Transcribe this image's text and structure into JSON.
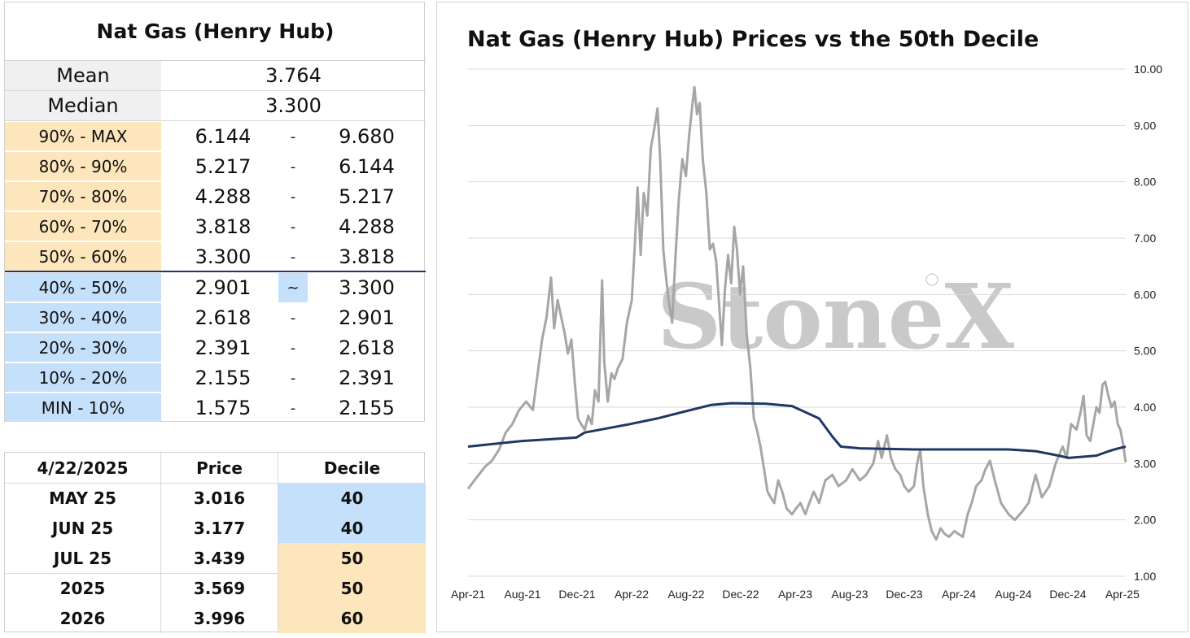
{
  "decile_table": {
    "title": "Nat Gas (Henry Hub)",
    "stats": [
      {
        "label": "Mean",
        "value": "3.764"
      },
      {
        "label": "Median",
        "value": "3.300"
      }
    ],
    "rows": [
      {
        "label": "90% - MAX",
        "low": "6.144",
        "sep": "-",
        "high": "9.680",
        "zone": "upper"
      },
      {
        "label": "80% - 90%",
        "low": "5.217",
        "sep": "-",
        "high": "6.144",
        "zone": "upper"
      },
      {
        "label": "70% - 80%",
        "low": "4.288",
        "sep": "-",
        "high": "5.217",
        "zone": "upper"
      },
      {
        "label": "60% - 70%",
        "low": "3.818",
        "sep": "-",
        "high": "4.288",
        "zone": "upper"
      },
      {
        "label": "50% - 60%",
        "low": "3.300",
        "sep": "-",
        "high": "3.818",
        "zone": "upper"
      },
      {
        "label": "40% - 50%",
        "low": "2.901",
        "sep": "~",
        "high": "3.300",
        "zone": "lower",
        "current": true
      },
      {
        "label": "30% - 40%",
        "low": "2.618",
        "sep": "-",
        "high": "2.901",
        "zone": "lower"
      },
      {
        "label": "20% - 30%",
        "low": "2.391",
        "sep": "-",
        "high": "2.618",
        "zone": "lower"
      },
      {
        "label": "10% - 20%",
        "low": "2.155",
        "sep": "-",
        "high": "2.391",
        "zone": "lower"
      },
      {
        "label": "MIN - 10%",
        "low": "1.575",
        "sep": "-",
        "high": "2.155",
        "zone": "lower"
      }
    ],
    "colors": {
      "upper": "#fde6bb",
      "lower": "#c5e0fa",
      "divider": "#1f3864"
    }
  },
  "forward_table": {
    "headers": [
      "4/22/2025",
      "Price",
      "Decile"
    ],
    "rows": [
      {
        "contract": "MAY 25",
        "price": "3.016",
        "decile": "40",
        "zone": "lower"
      },
      {
        "contract": "JUN 25",
        "price": "3.177",
        "decile": "40",
        "zone": "lower"
      },
      {
        "contract": "JUL 25",
        "price": "3.439",
        "decile": "50",
        "zone": "upper"
      },
      {
        "contract": "2025",
        "price": "3.569",
        "decile": "50",
        "zone": "upper"
      },
      {
        "contract": "2026",
        "price": "3.996",
        "decile": "60",
        "zone": "upper"
      }
    ]
  },
  "chart_data": {
    "type": "line",
    "title": "Nat Gas (Henry Hub) Prices vs the 50th Decile",
    "xlabel": "",
    "ylabel": "",
    "ylim": [
      1.0,
      10.0
    ],
    "yticks": [
      "1.00",
      "2.00",
      "3.00",
      "4.00",
      "5.00",
      "6.00",
      "7.00",
      "8.00",
      "9.00",
      "10.00"
    ],
    "xticks": [
      "Apr-21",
      "Aug-21",
      "Dec-21",
      "Apr-22",
      "Aug-22",
      "Dec-22",
      "Apr-23",
      "Aug-23",
      "Dec-23",
      "Apr-24",
      "Aug-24",
      "Dec-24",
      "Apr-25"
    ],
    "x_range": [
      "2021-04-01",
      "2025-04-22"
    ],
    "y_axis_position": "right",
    "grid": true,
    "legend": "none",
    "watermark": "StoneX",
    "series": [
      {
        "color": "#a6a6a6",
        "points": [
          [
            "2021-04-01",
            2.55
          ],
          [
            "2021-04-20",
            2.75
          ],
          [
            "2021-05-10",
            2.95
          ],
          [
            "2021-05-25",
            3.05
          ],
          [
            "2021-06-10",
            3.25
          ],
          [
            "2021-06-25",
            3.55
          ],
          [
            "2021-07-10",
            3.7
          ],
          [
            "2021-07-25",
            3.95
          ],
          [
            "2021-08-10",
            4.1
          ],
          [
            "2021-08-25",
            3.95
          ],
          [
            "2021-09-05",
            4.6
          ],
          [
            "2021-09-15",
            5.2
          ],
          [
            "2021-09-25",
            5.6
          ],
          [
            "2021-10-05",
            6.3
          ],
          [
            "2021-10-12",
            5.4
          ],
          [
            "2021-10-20",
            5.9
          ],
          [
            "2021-10-28",
            5.6
          ],
          [
            "2021-11-05",
            5.3
          ],
          [
            "2021-11-12",
            4.95
          ],
          [
            "2021-11-20",
            5.2
          ],
          [
            "2021-11-28",
            4.4
          ],
          [
            "2021-12-05",
            3.8
          ],
          [
            "2021-12-12",
            3.7
          ],
          [
            "2021-12-20",
            3.6
          ],
          [
            "2021-12-28",
            3.85
          ],
          [
            "2022-01-05",
            3.7
          ],
          [
            "2022-01-12",
            4.3
          ],
          [
            "2022-01-20",
            4.1
          ],
          [
            "2022-01-28",
            6.25
          ],
          [
            "2022-02-02",
            4.8
          ],
          [
            "2022-02-10",
            4.1
          ],
          [
            "2022-02-18",
            4.6
          ],
          [
            "2022-02-25",
            4.5
          ],
          [
            "2022-03-05",
            4.7
          ],
          [
            "2022-03-15",
            4.85
          ],
          [
            "2022-03-25",
            5.5
          ],
          [
            "2022-04-05",
            5.9
          ],
          [
            "2022-04-12",
            6.9
          ],
          [
            "2022-04-18",
            7.9
          ],
          [
            "2022-04-25",
            6.7
          ],
          [
            "2022-05-02",
            7.8
          ],
          [
            "2022-05-10",
            7.4
          ],
          [
            "2022-05-18",
            8.6
          ],
          [
            "2022-05-25",
            8.9
          ],
          [
            "2022-06-02",
            9.3
          ],
          [
            "2022-06-08",
            8.4
          ],
          [
            "2022-06-15",
            6.8
          ],
          [
            "2022-06-20",
            6.4
          ],
          [
            "2022-06-27",
            5.9
          ],
          [
            "2022-07-05",
            5.5
          ],
          [
            "2022-07-12",
            6.6
          ],
          [
            "2022-07-20",
            7.7
          ],
          [
            "2022-07-28",
            8.4
          ],
          [
            "2022-08-05",
            8.1
          ],
          [
            "2022-08-12",
            8.8
          ],
          [
            "2022-08-20",
            9.4
          ],
          [
            "2022-08-24",
            9.68
          ],
          [
            "2022-08-30",
            9.2
          ],
          [
            "2022-09-05",
            9.4
          ],
          [
            "2022-09-12",
            8.4
          ],
          [
            "2022-09-20",
            7.8
          ],
          [
            "2022-09-28",
            6.8
          ],
          [
            "2022-10-05",
            6.9
          ],
          [
            "2022-10-12",
            6.6
          ],
          [
            "2022-10-20",
            5.7
          ],
          [
            "2022-10-25",
            5.1
          ],
          [
            "2022-11-01",
            6.1
          ],
          [
            "2022-11-08",
            6.7
          ],
          [
            "2022-11-15",
            6.2
          ],
          [
            "2022-11-22",
            7.2
          ],
          [
            "2022-11-28",
            6.8
          ],
          [
            "2022-12-05",
            6.0
          ],
          [
            "2022-12-12",
            6.5
          ],
          [
            "2022-12-20",
            5.3
          ],
          [
            "2022-12-28",
            4.7
          ],
          [
            "2023-01-05",
            3.8
          ],
          [
            "2023-01-12",
            3.6
          ],
          [
            "2023-01-20",
            3.3
          ],
          [
            "2023-01-28",
            2.9
          ],
          [
            "2023-02-05",
            2.5
          ],
          [
            "2023-02-12",
            2.4
          ],
          [
            "2023-02-20",
            2.3
          ],
          [
            "2023-03-01",
            2.7
          ],
          [
            "2023-03-10",
            2.5
          ],
          [
            "2023-03-20",
            2.2
          ],
          [
            "2023-04-01",
            2.1
          ],
          [
            "2023-04-10",
            2.2
          ],
          [
            "2023-04-20",
            2.3
          ],
          [
            "2023-05-01",
            2.1
          ],
          [
            "2023-05-10",
            2.3
          ],
          [
            "2023-05-20",
            2.5
          ],
          [
            "2023-06-01",
            2.3
          ],
          [
            "2023-06-15",
            2.7
          ],
          [
            "2023-07-01",
            2.8
          ],
          [
            "2023-07-15",
            2.6
          ],
          [
            "2023-08-01",
            2.7
          ],
          [
            "2023-08-15",
            2.9
          ],
          [
            "2023-09-01",
            2.7
          ],
          [
            "2023-09-15",
            2.8
          ],
          [
            "2023-10-01",
            3.0
          ],
          [
            "2023-10-12",
            3.4
          ],
          [
            "2023-10-20",
            3.1
          ],
          [
            "2023-11-01",
            3.5
          ],
          [
            "2023-11-10",
            3.1
          ],
          [
            "2023-11-20",
            2.9
          ],
          [
            "2023-12-01",
            2.8
          ],
          [
            "2023-12-10",
            2.6
          ],
          [
            "2023-12-20",
            2.5
          ],
          [
            "2024-01-01",
            2.6
          ],
          [
            "2024-01-08",
            3.0
          ],
          [
            "2024-01-15",
            3.25
          ],
          [
            "2024-01-22",
            2.6
          ],
          [
            "2024-02-01",
            2.1
          ],
          [
            "2024-02-10",
            1.8
          ],
          [
            "2024-02-20",
            1.65
          ],
          [
            "2024-03-01",
            1.85
          ],
          [
            "2024-03-10",
            1.75
          ],
          [
            "2024-03-20",
            1.7
          ],
          [
            "2024-04-01",
            1.8
          ],
          [
            "2024-04-10",
            1.75
          ],
          [
            "2024-04-20",
            1.7
          ],
          [
            "2024-05-01",
            2.1
          ],
          [
            "2024-05-10",
            2.3
          ],
          [
            "2024-05-20",
            2.6
          ],
          [
            "2024-06-01",
            2.7
          ],
          [
            "2024-06-10",
            2.9
          ],
          [
            "2024-06-20",
            3.05
          ],
          [
            "2024-07-01",
            2.7
          ],
          [
            "2024-07-15",
            2.3
          ],
          [
            "2024-08-01",
            2.1
          ],
          [
            "2024-08-15",
            2.0
          ],
          [
            "2024-09-01",
            2.15
          ],
          [
            "2024-09-15",
            2.3
          ],
          [
            "2024-10-01",
            2.8
          ],
          [
            "2024-10-15",
            2.4
          ],
          [
            "2024-11-01",
            2.6
          ],
          [
            "2024-11-15",
            3.0
          ],
          [
            "2024-12-01",
            3.3
          ],
          [
            "2024-12-10",
            3.1
          ],
          [
            "2024-12-20",
            3.7
          ],
          [
            "2025-01-01",
            3.6
          ],
          [
            "2025-01-10",
            3.9
          ],
          [
            "2025-01-17",
            4.2
          ],
          [
            "2025-01-24",
            3.5
          ],
          [
            "2025-02-01",
            3.4
          ],
          [
            "2025-02-08",
            3.7
          ],
          [
            "2025-02-15",
            4.0
          ],
          [
            "2025-02-22",
            3.9
          ],
          [
            "2025-03-01",
            4.4
          ],
          [
            "2025-03-07",
            4.45
          ],
          [
            "2025-03-14",
            4.2
          ],
          [
            "2025-03-21",
            4.0
          ],
          [
            "2025-03-28",
            4.1
          ],
          [
            "2025-04-04",
            3.7
          ],
          [
            "2025-04-10",
            3.6
          ],
          [
            "2025-04-16",
            3.35
          ],
          [
            "2025-04-22",
            3.02
          ]
        ]
      },
      {
        "color": "#1f3864",
        "points": [
          [
            "2021-04-01",
            3.3
          ],
          [
            "2021-08-01",
            3.4
          ],
          [
            "2021-12-01",
            3.46
          ],
          [
            "2021-12-20",
            3.55
          ],
          [
            "2022-04-01",
            3.7
          ],
          [
            "2022-06-01",
            3.8
          ],
          [
            "2022-08-01",
            3.92
          ],
          [
            "2022-10-01",
            4.04
          ],
          [
            "2022-11-15",
            4.07
          ],
          [
            "2023-02-01",
            4.06
          ],
          [
            "2023-04-01",
            4.02
          ],
          [
            "2023-06-01",
            3.8
          ],
          [
            "2023-07-01",
            3.48
          ],
          [
            "2023-07-20",
            3.3
          ],
          [
            "2023-09-01",
            3.27
          ],
          [
            "2024-01-01",
            3.25
          ],
          [
            "2024-08-01",
            3.25
          ],
          [
            "2024-10-01",
            3.22
          ],
          [
            "2024-11-15",
            3.15
          ],
          [
            "2024-12-15",
            3.1
          ],
          [
            "2025-01-15",
            3.12
          ],
          [
            "2025-02-15",
            3.14
          ],
          [
            "2025-03-15",
            3.22
          ],
          [
            "2025-04-01",
            3.26
          ],
          [
            "2025-04-22",
            3.3
          ]
        ]
      }
    ]
  }
}
